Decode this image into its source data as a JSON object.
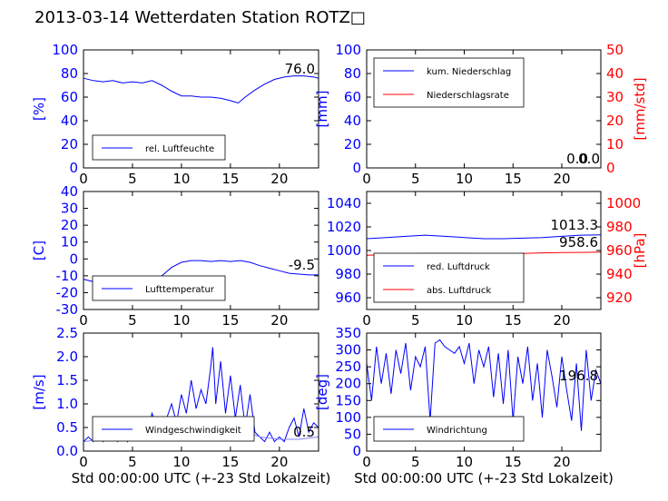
{
  "title": "2013-03-14 Wetterdaten Station ROTZ□",
  "colors": {
    "left_axis": "#0000ff",
    "right_axis": "#ff0000",
    "series_blue": "#0000ff",
    "series_red": "#ff0000",
    "series_light": "#8080ff"
  },
  "chart_data": [
    {
      "type": "line",
      "ylabel": "[%]",
      "xlim": [
        0,
        24
      ],
      "ylim": [
        0,
        100
      ],
      "xticks": [
        0,
        5,
        10,
        15,
        20
      ],
      "yticks": [
        0,
        20,
        40,
        60,
        80,
        100
      ],
      "legend": {
        "placement": "lower-left",
        "entries": [
          "rel. Luftfeuchte"
        ]
      },
      "annotations": [
        "76.0"
      ],
      "series": [
        {
          "name": "rel. Luftfeuchte",
          "axis": "left",
          "color": "#0000ff",
          "x": [
            0,
            1,
            2,
            3,
            4,
            5,
            6,
            7,
            8,
            9,
            10,
            11,
            12,
            13,
            14,
            15,
            15.8,
            16.5,
            17.5,
            18.5,
            19.5,
            20.5,
            21.5,
            22.5,
            23.5,
            24
          ],
          "y": [
            76,
            74,
            73,
            74,
            72,
            73,
            72,
            74,
            70,
            65,
            61,
            61,
            60,
            60,
            59,
            57,
            55,
            60,
            66,
            71,
            75,
            77,
            78,
            78,
            77,
            76
          ]
        }
      ]
    },
    {
      "type": "line",
      "ylabel": "[mm]",
      "y2label": "[mm/std]",
      "xlim": [
        0,
        24
      ],
      "ylim": [
        0,
        100
      ],
      "y2lim": [
        0,
        50
      ],
      "xticks": [
        0,
        5,
        10,
        15,
        20
      ],
      "yticks": [
        0,
        20,
        40,
        60,
        80,
        100
      ],
      "y2ticks": [
        0,
        10,
        20,
        30,
        40,
        50
      ],
      "legend": {
        "placement": "upper-left",
        "entries": [
          "kum. Niederschlag",
          "Niederschlagsrate"
        ]
      },
      "annotations": [
        "0.0",
        "0.0"
      ],
      "series": [
        {
          "name": "kum. Niederschlag",
          "axis": "left",
          "color": "#0000ff",
          "x": [
            0,
            24
          ],
          "y": [
            0,
            0
          ]
        },
        {
          "name": "Niederschlagsrate",
          "axis": "right",
          "color": "#ff0000",
          "x": [
            0,
            24
          ],
          "y": [
            0,
            0
          ]
        }
      ]
    },
    {
      "type": "line",
      "ylabel": "[C]",
      "xlim": [
        0,
        24
      ],
      "ylim": [
        -30,
        40
      ],
      "xticks": [
        0,
        5,
        10,
        15,
        20
      ],
      "yticks": [
        -30,
        -20,
        -10,
        0,
        10,
        20,
        30,
        40
      ],
      "legend": {
        "placement": "lower-left",
        "entries": [
          "Lufttemperatur"
        ]
      },
      "annotations": [
        "-9.5"
      ],
      "series": [
        {
          "name": "Lufttemperatur",
          "axis": "left",
          "color": "#0000ff",
          "x": [
            0,
            1,
            2,
            3,
            4,
            5,
            6,
            7,
            8,
            9,
            10,
            11,
            12,
            13,
            14,
            15,
            16,
            17,
            18,
            19,
            20,
            21,
            22,
            23,
            24
          ],
          "y": [
            -12,
            -13.5,
            -15,
            -16,
            -17,
            -17,
            -17.5,
            -14,
            -10,
            -5,
            -2,
            -1,
            -1,
            -1.5,
            -1,
            -1.5,
            -1,
            -2,
            -4,
            -5.5,
            -7,
            -8.5,
            -9,
            -9.5,
            -9.5
          ]
        }
      ]
    },
    {
      "type": "line",
      "y2label": "[hPa]",
      "xlim": [
        0,
        24
      ],
      "ylim": [
        950,
        1050
      ],
      "y2lim": [
        910,
        1010
      ],
      "xticks": [
        0,
        5,
        10,
        15,
        20
      ],
      "yticks": [
        960,
        980,
        1000,
        1020,
        1040
      ],
      "y2ticks": [
        920,
        940,
        960,
        980,
        1000
      ],
      "legend": {
        "placement": "lower-left",
        "entries": [
          "red. Luftdruck",
          "abs. Luftdruck"
        ]
      },
      "annotations": [
        "1013.3",
        "958.6"
      ],
      "series": [
        {
          "name": "red. Luftdruck",
          "axis": "left",
          "color": "#0000ff",
          "x": [
            0,
            2,
            4,
            6,
            8,
            10,
            12,
            14,
            16,
            18,
            20,
            22,
            24
          ],
          "y": [
            1010,
            1011,
            1012,
            1013,
            1012,
            1011,
            1010,
            1010,
            1010.5,
            1011,
            1012,
            1013,
            1013.3
          ]
        },
        {
          "name": "abs. Luftdruck",
          "axis": "right",
          "color": "#ff0000",
          "x": [
            0,
            2,
            4,
            6,
            8,
            10,
            12,
            14,
            16,
            18,
            20,
            22,
            24
          ],
          "y": [
            956,
            956.5,
            957,
            957.5,
            957.5,
            957.5,
            957,
            957,
            957.5,
            958,
            958.2,
            958.4,
            958.6
          ]
        }
      ]
    },
    {
      "type": "line",
      "ylabel": "[m/s]",
      "xlabel": "Std 00:00:00 UTC (+-23 Std Lokalzeit)",
      "xlim": [
        0,
        24
      ],
      "ylim": [
        0,
        2.5
      ],
      "xticks": [
        0,
        5,
        10,
        15,
        20
      ],
      "yticks": [
        0.0,
        0.5,
        1.0,
        1.5,
        2.0,
        2.5
      ],
      "legend": {
        "placement": "lower-left",
        "entries": [
          "Windgeschwindigkeit"
        ]
      },
      "annotations": [
        "0.5"
      ],
      "series": [
        {
          "name": "Windgeschwindigkeit",
          "axis": "left",
          "color": "#0000ff",
          "x": [
            0,
            0.5,
            1,
            1.5,
            2,
            2.5,
            3,
            3.5,
            4,
            4.5,
            5,
            5.5,
            6,
            6.5,
            7,
            7.5,
            8,
            8.5,
            9,
            9.5,
            10,
            10.5,
            11,
            11.5,
            12,
            12.5,
            13,
            13.2,
            13.5,
            14,
            14.5,
            15,
            15.5,
            16,
            16.5,
            17,
            17.5,
            18,
            18.5,
            19,
            19.5,
            20,
            20.5,
            21,
            21.5,
            22,
            22.5,
            23,
            23.5,
            24
          ],
          "y": [
            0.2,
            0.3,
            0.2,
            0.4,
            0.2,
            0.3,
            0.3,
            0.2,
            0.4,
            0.2,
            0.5,
            0.3,
            0.6,
            0.4,
            0.8,
            0.5,
            0.3,
            0.7,
            1.0,
            0.6,
            1.2,
            0.8,
            1.5,
            0.9,
            1.3,
            1.0,
            1.8,
            2.2,
            1.0,
            1.9,
            0.8,
            1.6,
            0.7,
            1.4,
            0.5,
            1.2,
            0.4,
            0.3,
            0.2,
            0.4,
            0.2,
            0.3,
            0.2,
            0.5,
            0.7,
            0.3,
            0.9,
            0.4,
            0.6,
            0.5
          ]
        },
        {
          "axis": "left",
          "color": "#8080ff",
          "x": [
            0,
            2,
            4,
            6,
            8,
            10,
            12,
            14,
            16,
            18,
            20,
            22,
            24
          ],
          "y": [
            0.2,
            0.25,
            0.3,
            0.35,
            0.4,
            0.45,
            0.5,
            0.55,
            0.45,
            0.3,
            0.25,
            0.25,
            0.3
          ]
        }
      ]
    },
    {
      "type": "line",
      "ylabel": "[deg]",
      "xlabel": "Std 00:00:00 UTC (+-23 Std Lokalzeit)",
      "xlim": [
        0,
        24
      ],
      "ylim": [
        0,
        350
      ],
      "xticks": [
        0,
        5,
        10,
        15,
        20
      ],
      "yticks": [
        0,
        50,
        100,
        150,
        200,
        250,
        300,
        350
      ],
      "legend": {
        "placement": "lower-left",
        "entries": [
          "Windrichtung"
        ]
      },
      "annotations": [
        "196.8"
      ],
      "series": [
        {
          "name": "Windrichtung",
          "axis": "left",
          "color": "#0000ff",
          "x": [
            0,
            0.5,
            1,
            1.5,
            2,
            2.5,
            3,
            3.5,
            4,
            4.5,
            5,
            5.5,
            6,
            6.5,
            7,
            7.5,
            8,
            8.5,
            9,
            9.5,
            10,
            10.5,
            11,
            11.5,
            12,
            12.5,
            13,
            13.5,
            14,
            14.5,
            15,
            15.5,
            16,
            16.5,
            17,
            17.5,
            18,
            18.5,
            19,
            19.5,
            20,
            20.5,
            21,
            21.5,
            22,
            22.5,
            23,
            23.5,
            24
          ],
          "y": [
            260,
            150,
            310,
            200,
            290,
            170,
            300,
            230,
            320,
            180,
            280,
            250,
            310,
            90,
            320,
            330,
            310,
            300,
            290,
            310,
            260,
            320,
            200,
            300,
            250,
            310,
            160,
            290,
            140,
            300,
            90,
            280,
            200,
            310,
            150,
            260,
            100,
            300,
            220,
            130,
            280,
            180,
            90,
            260,
            60,
            300,
            150,
            240,
            200
          ]
        }
      ]
    }
  ]
}
